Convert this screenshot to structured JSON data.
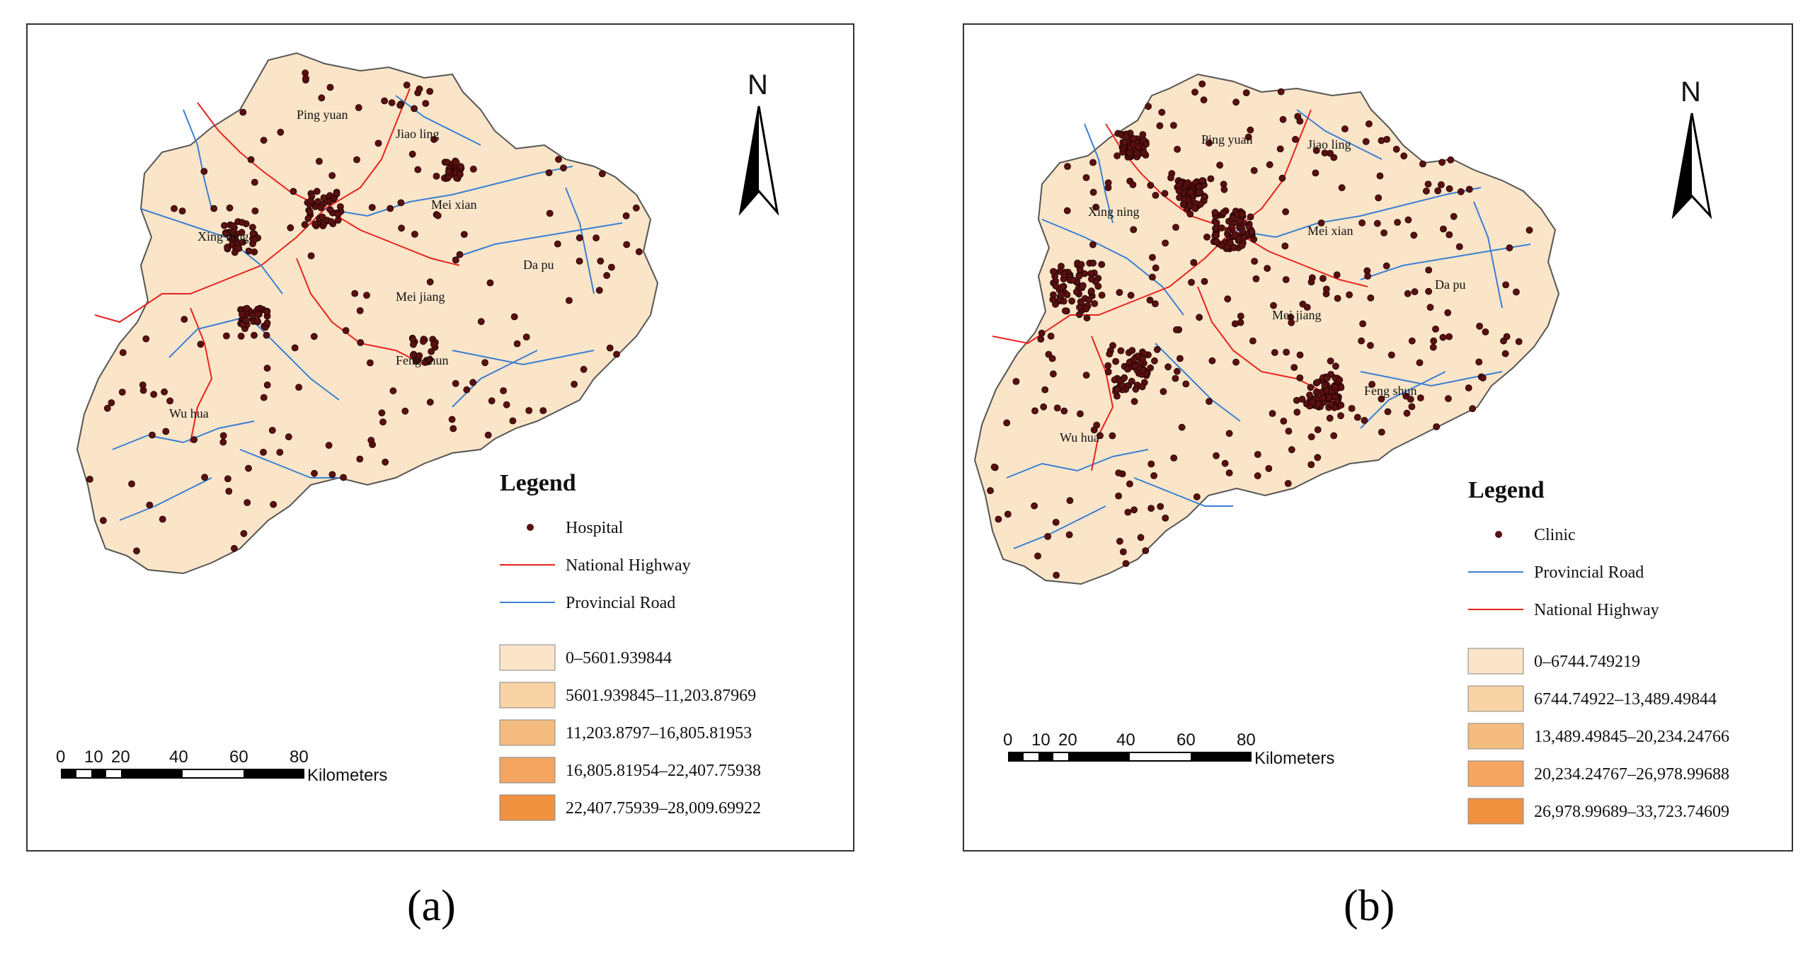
{
  "colors": {
    "region_fill": "#fae5c8",
    "boundary": "#555555",
    "national_highway": "#e8231f",
    "provincial_road": "#3b7fd4",
    "facility_dot": "#5a1010",
    "class_fills": [
      "#fae5c8",
      "#f8d3a5",
      "#f5bc80",
      "#f3a561",
      "#f09140"
    ]
  },
  "panels": [
    {
      "id": "a",
      "caption": "(a)",
      "north_label": "N",
      "regions": [
        "Ping yuan",
        "Jiao ling",
        "Xing ning",
        "Mei xian",
        "Da pu",
        "Mei jiang",
        "Feng shun",
        "Wu hua"
      ],
      "legend": {
        "title": "Legend",
        "items": [
          {
            "label": "Hospital",
            "symbol": "dot"
          },
          {
            "label": "National Highway",
            "symbol": "national"
          },
          {
            "label": "Provincial  Road",
            "symbol": "provincial"
          }
        ],
        "classes": [
          "0–5601.939844",
          "5601.939845–11,203.87969",
          "11,203.8797–16,805.81953",
          "16,805.81954–22,407.75938",
          "22,407.75939–28,009.69922"
        ]
      },
      "scale": {
        "ticks": [
          "0",
          "10",
          "20",
          "40",
          "60",
          "80"
        ],
        "unit": "Kilometers"
      }
    },
    {
      "id": "b",
      "caption": "(b)",
      "north_label": "N",
      "regions": [
        "Ping yuan",
        "Jiao ling",
        "Xing ning",
        "Mei xian",
        "Da pu",
        "Mei jiang",
        "Feng shun",
        "Wu hua"
      ],
      "legend": {
        "title": "Legend",
        "items": [
          {
            "label": "Clinic",
            "symbol": "dot"
          },
          {
            "label": "Provincial Road",
            "symbol": "provincial"
          },
          {
            "label": "National Highway",
            "symbol": "national"
          }
        ],
        "classes": [
          "0–6744.749219",
          "6744.74922–13,489.49844",
          "13,489.49845–20,234.24766",
          "20,234.24767–26,978.99688",
          "26,978.99689–33,723.74609"
        ]
      },
      "scale": {
        "ticks": [
          "0",
          "10",
          "20",
          "40",
          "60",
          "80"
        ],
        "unit": "Kilometers"
      }
    }
  ]
}
